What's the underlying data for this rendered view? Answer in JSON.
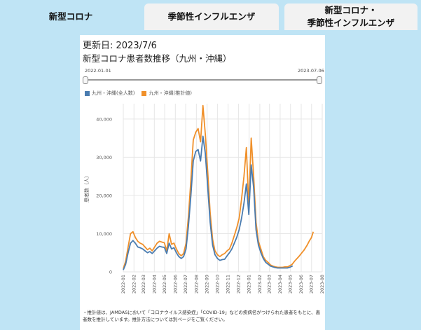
{
  "tabs": [
    {
      "label": "新型コロナ",
      "active": true
    },
    {
      "label": "季節性インフルエンザ",
      "active": false
    },
    {
      "label": "新型コロナ・\n季節性インフルエンザ",
      "active": false
    }
  ],
  "updated": "更新日: 2023/7/6",
  "chart_title": "新型コロナ患者数推移（九州・沖縄）",
  "range": {
    "start": "2022-01-01",
    "end": "2023-07-06"
  },
  "footnote": "・推計値は、JAMDASにおいて「コロナウイルス感染症」「COVID-19」などの疾病名がつけられた患者をもとに、患者数を推計しています。推計方法については別ページをご覧ください。",
  "colors": {
    "blue": "#4a7cb0",
    "orange": "#f0902a",
    "grid": "#e6e6e6"
  },
  "chart_data": {
    "type": "line",
    "title": "新型コロナ患者数推移（九州・沖縄）",
    "ylabel": "患者数（人）",
    "ylim": [
      0,
      44000
    ],
    "yticks": [
      0,
      10000,
      20000,
      30000,
      40000
    ],
    "ytick_labels": [
      "0",
      "10,000",
      "20,000",
      "30,000",
      "40,000"
    ],
    "x_start": "2022-01-01",
    "x_end": "2023-08-01",
    "xtick_labels": [
      "2022-01",
      "2022-02",
      "2022-03",
      "2022-04",
      "2022-05",
      "2022-06",
      "2022-07",
      "2022-08",
      "2022-09",
      "2022-10",
      "2022-11",
      "2022-12",
      "2023-01",
      "2023-02",
      "2023-03",
      "2023-04",
      "2023-05",
      "2023-06",
      "2023-07",
      "2023-08"
    ],
    "legend": "top-left",
    "series": [
      {
        "name": "九州・沖縄(全人数)",
        "color": "#4a7cb0",
        "points": [
          [
            "2022-01-01",
            500
          ],
          [
            "2022-01-08",
            2000
          ],
          [
            "2022-01-15",
            5000
          ],
          [
            "2022-01-22",
            7500
          ],
          [
            "2022-01-29",
            8200
          ],
          [
            "2022-02-05",
            7500
          ],
          [
            "2022-02-12",
            6500
          ],
          [
            "2022-02-19",
            6300
          ],
          [
            "2022-02-26",
            6000
          ],
          [
            "2022-03-05",
            5500
          ],
          [
            "2022-03-12",
            5000
          ],
          [
            "2022-03-19",
            5300
          ],
          [
            "2022-03-26",
            4800
          ],
          [
            "2022-04-02",
            5500
          ],
          [
            "2022-04-09",
            6200
          ],
          [
            "2022-04-16",
            6700
          ],
          [
            "2022-04-23",
            6500
          ],
          [
            "2022-04-30",
            6400
          ],
          [
            "2022-05-07",
            4800
          ],
          [
            "2022-05-14",
            7500
          ],
          [
            "2022-05-21",
            6000
          ],
          [
            "2022-05-28",
            6300
          ],
          [
            "2022-06-04",
            5000
          ],
          [
            "2022-06-11",
            4000
          ],
          [
            "2022-06-18",
            3500
          ],
          [
            "2022-06-25",
            4000
          ],
          [
            "2022-07-02",
            6000
          ],
          [
            "2022-07-09",
            12000
          ],
          [
            "2022-07-16",
            20000
          ],
          [
            "2022-07-23",
            29000
          ],
          [
            "2022-07-30",
            31500
          ],
          [
            "2022-08-06",
            32000
          ],
          [
            "2022-08-13",
            29000
          ],
          [
            "2022-08-20",
            35500
          ],
          [
            "2022-08-27",
            31000
          ],
          [
            "2022-09-03",
            22000
          ],
          [
            "2022-09-10",
            13000
          ],
          [
            "2022-09-17",
            7000
          ],
          [
            "2022-09-24",
            4500
          ],
          [
            "2022-10-01",
            3500
          ],
          [
            "2022-10-08",
            3000
          ],
          [
            "2022-10-15",
            3200
          ],
          [
            "2022-10-22",
            3300
          ],
          [
            "2022-10-29",
            4200
          ],
          [
            "2022-11-05",
            5000
          ],
          [
            "2022-11-12",
            6000
          ],
          [
            "2022-11-19",
            7500
          ],
          [
            "2022-11-26",
            9000
          ],
          [
            "2022-12-03",
            11000
          ],
          [
            "2022-12-10",
            14000
          ],
          [
            "2022-12-17",
            18000
          ],
          [
            "2022-12-24",
            23000
          ],
          [
            "2022-12-31",
            15000
          ],
          [
            "2023-01-07",
            28000
          ],
          [
            "2023-01-14",
            22000
          ],
          [
            "2023-01-21",
            11000
          ],
          [
            "2023-01-28",
            7000
          ],
          [
            "2023-02-04",
            5000
          ],
          [
            "2023-02-11",
            3500
          ],
          [
            "2023-02-18",
            2500
          ],
          [
            "2023-02-25",
            2000
          ],
          [
            "2023-03-04",
            1500
          ],
          [
            "2023-03-11",
            1300
          ],
          [
            "2023-03-18",
            1100
          ],
          [
            "2023-03-25",
            1000
          ],
          [
            "2023-04-01",
            1000
          ],
          [
            "2023-04-08",
            1000
          ],
          [
            "2023-04-15",
            1000
          ],
          [
            "2023-04-22",
            1000
          ],
          [
            "2023-04-29",
            1200
          ],
          [
            "2023-05-06",
            1500
          ],
          [
            "2023-05-07",
            1600
          ]
        ]
      },
      {
        "name": "九州・沖縄(推計値)",
        "color": "#f0902a",
        "points": [
          [
            "2022-01-01",
            800
          ],
          [
            "2022-01-08",
            2800
          ],
          [
            "2022-01-15",
            6500
          ],
          [
            "2022-01-22",
            10000
          ],
          [
            "2022-01-29",
            10500
          ],
          [
            "2022-02-05",
            9000
          ],
          [
            "2022-02-12",
            8000
          ],
          [
            "2022-02-19",
            7500
          ],
          [
            "2022-02-26",
            7200
          ],
          [
            "2022-03-05",
            6500
          ],
          [
            "2022-03-12",
            5800
          ],
          [
            "2022-03-19",
            6200
          ],
          [
            "2022-03-26",
            5500
          ],
          [
            "2022-04-02",
            6500
          ],
          [
            "2022-04-09",
            7500
          ],
          [
            "2022-04-16",
            8000
          ],
          [
            "2022-04-23",
            7800
          ],
          [
            "2022-04-30",
            7600
          ],
          [
            "2022-05-07",
            5500
          ],
          [
            "2022-05-14",
            10000
          ],
          [
            "2022-05-21",
            7200
          ],
          [
            "2022-05-28",
            7500
          ],
          [
            "2022-06-04",
            6000
          ],
          [
            "2022-06-11",
            4800
          ],
          [
            "2022-06-18",
            4200
          ],
          [
            "2022-06-25",
            4800
          ],
          [
            "2022-07-02",
            7500
          ],
          [
            "2022-07-09",
            14500
          ],
          [
            "2022-07-16",
            24000
          ],
          [
            "2022-07-23",
            34500
          ],
          [
            "2022-07-30",
            36500
          ],
          [
            "2022-08-06",
            37500
          ],
          [
            "2022-08-13",
            34000
          ],
          [
            "2022-08-20",
            43500
          ],
          [
            "2022-08-27",
            36000
          ],
          [
            "2022-09-03",
            26000
          ],
          [
            "2022-09-10",
            15500
          ],
          [
            "2022-09-17",
            8500
          ],
          [
            "2022-09-24",
            5500
          ],
          [
            "2022-10-01",
            4500
          ],
          [
            "2022-10-08",
            4000
          ],
          [
            "2022-10-15",
            4500
          ],
          [
            "2022-10-22",
            4800
          ],
          [
            "2022-10-29",
            5500
          ],
          [
            "2022-11-05",
            6000
          ],
          [
            "2022-11-12",
            7500
          ],
          [
            "2022-11-19",
            9500
          ],
          [
            "2022-11-26",
            11500
          ],
          [
            "2022-12-03",
            14000
          ],
          [
            "2022-12-10",
            19000
          ],
          [
            "2022-12-17",
            25000
          ],
          [
            "2022-12-24",
            32500
          ],
          [
            "2022-12-31",
            17000
          ],
          [
            "2023-01-07",
            35000
          ],
          [
            "2023-01-14",
            25000
          ],
          [
            "2023-01-21",
            13000
          ],
          [
            "2023-01-28",
            8000
          ],
          [
            "2023-02-04",
            6000
          ],
          [
            "2023-02-11",
            4000
          ],
          [
            "2023-02-18",
            3000
          ],
          [
            "2023-02-25",
            2500
          ],
          [
            "2023-03-04",
            1800
          ],
          [
            "2023-03-11",
            1500
          ],
          [
            "2023-03-18",
            1300
          ],
          [
            "2023-03-25",
            1200
          ],
          [
            "2023-04-01",
            1200
          ],
          [
            "2023-04-08",
            1200
          ],
          [
            "2023-04-15",
            1300
          ],
          [
            "2023-04-22",
            1300
          ],
          [
            "2023-04-29",
            1600
          ],
          [
            "2023-05-06",
            2000
          ],
          [
            "2023-05-13",
            2800
          ],
          [
            "2023-05-20",
            3500
          ],
          [
            "2023-05-27",
            4200
          ],
          [
            "2023-06-03",
            5000
          ],
          [
            "2023-06-10",
            5800
          ],
          [
            "2023-06-17",
            6800
          ],
          [
            "2023-06-24",
            8000
          ],
          [
            "2023-07-01",
            9000
          ],
          [
            "2023-07-06",
            10500
          ]
        ]
      }
    ]
  }
}
